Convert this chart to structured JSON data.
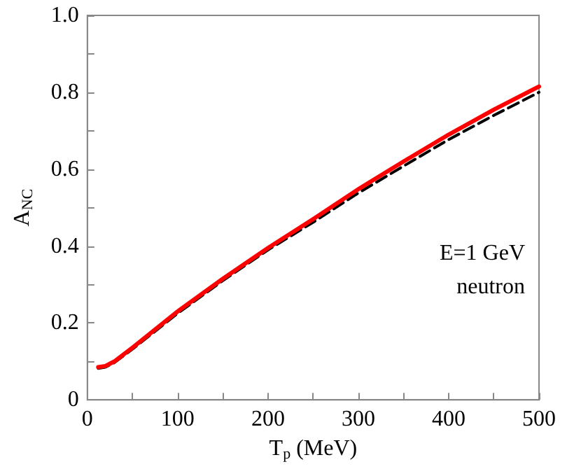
{
  "chart_data": {
    "type": "line",
    "xlabel": "T$_{p}$ (MeV)",
    "ylabel": "A$_{NC}$",
    "annotations": [
      "E=1 GeV",
      "neutron"
    ],
    "xlim": [
      0,
      500
    ],
    "ylim": [
      0,
      1
    ],
    "xticks": [
      0,
      {
        "value": 50,
        "label": null
      },
      100,
      {
        "value": 150,
        "label": null
      },
      200,
      {
        "value": 250,
        "label": null
      },
      300,
      {
        "value": 350,
        "label": null
      },
      400,
      {
        "value": 450,
        "label": null
      },
      500
    ],
    "yticks": [
      0,
      {
        "value": 0.1,
        "label": null
      },
      0.2,
      {
        "value": 0.3,
        "label": null
      },
      0.4,
      {
        "value": 0.5,
        "label": null
      },
      0.6,
      {
        "value": 0.7,
        "label": null
      },
      0.8,
      {
        "value": 0.9,
        "label": null
      },
      {
        "value": 1,
        "label": "1.0"
      }
    ],
    "grid": false,
    "marker": "none",
    "series": [
      {
        "color": "#000000",
        "line_style": "dashed",
        "x": [
          12,
          20,
          30,
          50,
          100,
          150,
          200,
          250,
          300,
          350,
          400,
          450,
          500
        ],
        "values": [
          0.082,
          0.085,
          0.097,
          0.132,
          0.225,
          0.31,
          0.39,
          0.462,
          0.538,
          0.608,
          0.677,
          0.74,
          0.8
        ]
      },
      {
        "color": "#ff0000",
        "line_style": "solid",
        "x": [
          12,
          20,
          30,
          50,
          100,
          150,
          200,
          250,
          300,
          350,
          400,
          450,
          500
        ],
        "values": [
          0.085,
          0.088,
          0.1,
          0.136,
          0.23,
          0.315,
          0.395,
          0.47,
          0.548,
          0.62,
          0.69,
          0.755,
          0.815
        ]
      }
    ]
  }
}
